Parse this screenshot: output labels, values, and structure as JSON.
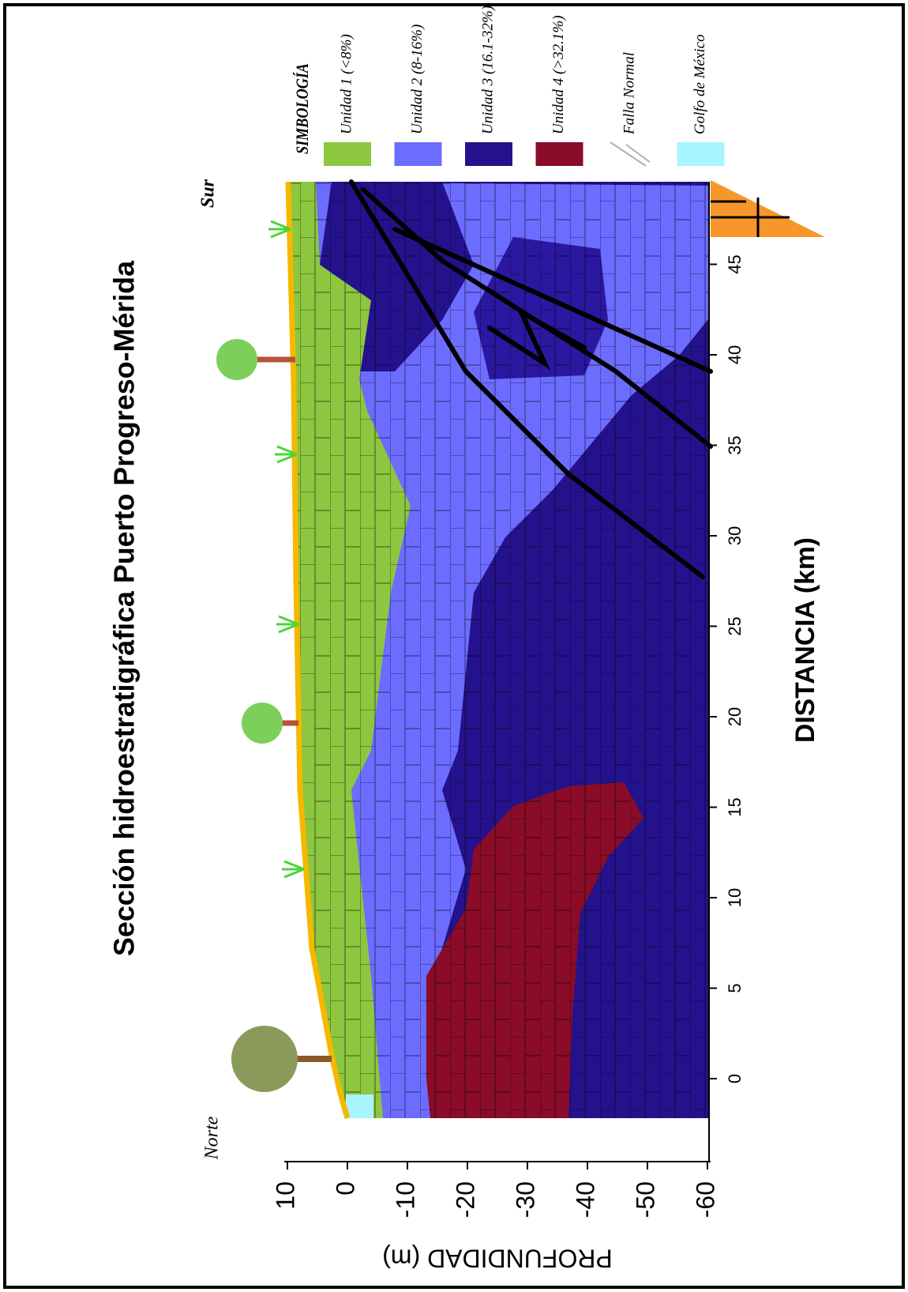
{
  "title": "Sección hidroestratigráfica Puerto Progreso-Mérida",
  "y_axis": {
    "label": "PROFUNDIDAD (m)",
    "ticks": [
      10,
      0,
      -10,
      -20,
      -30,
      -40,
      -50,
      -60
    ]
  },
  "x_axis": {
    "label": "DISTANCIA (km)",
    "ticks": [
      0,
      5,
      10,
      15,
      20,
      25,
      30,
      35,
      40,
      45
    ]
  },
  "north_label": "Norte",
  "south_label": "Sur",
  "legend": {
    "title": "SIMBOLOGÍA",
    "items": [
      {
        "label": "Unidad 1 (<8%)",
        "color": "#8dc63f"
      },
      {
        "label": "Unidad 2 (8-16%)",
        "color": "#6c6cff"
      },
      {
        "label": "Unidad 3 (16.1-32%)",
        "color": "#24128c"
      },
      {
        "label": "Unidad 4 (>32.1%)",
        "color": "#8a0c28"
      },
      {
        "label": "Falla Normal",
        "color": "#b0b0b0"
      },
      {
        "label": "Golfo de México",
        "color": "#a8f4ff"
      }
    ]
  }
}
